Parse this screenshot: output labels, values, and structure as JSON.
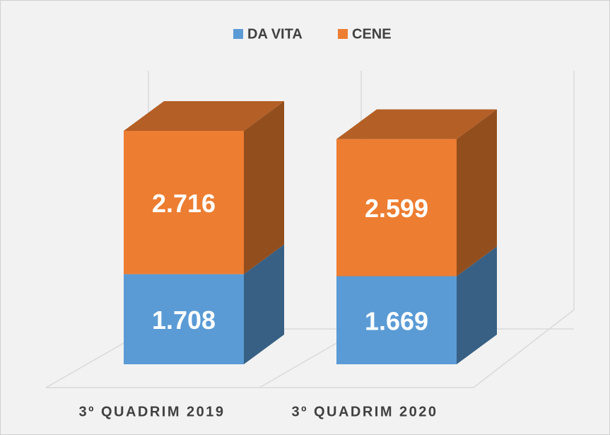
{
  "chart_data": {
    "type": "bar3d_stacked",
    "categories": [
      "3º QUADRIM 2019",
      "3º QUADRIM 2020"
    ],
    "series": [
      {
        "name": "DA VITA",
        "color": "#5b9bd5",
        "values": [
          1708,
          1669
        ],
        "value_labels": [
          "1.708",
          "1.669"
        ]
      },
      {
        "name": "CENE",
        "color": "#ed7d31",
        "values": [
          2716,
          2599
        ],
        "value_labels": [
          "2.716",
          "2.599"
        ]
      }
    ],
    "legend": "top"
  }
}
